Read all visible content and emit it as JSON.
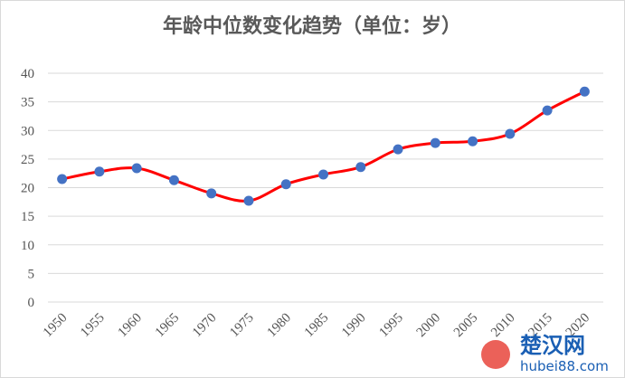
{
  "chart_data": {
    "type": "line",
    "title": "年龄中位数变化趋势（单位：岁）",
    "categories": [
      "1950",
      "1955",
      "1960",
      "1965",
      "1970",
      "1975",
      "1980",
      "1985",
      "1990",
      "1995",
      "2000",
      "2005",
      "2010",
      "2015",
      "2020"
    ],
    "series": [
      {
        "name": "年龄中位数",
        "color": "#ff0000",
        "marker_color": "#4472c4",
        "values": [
          21.5,
          22.8,
          23.4,
          21.3,
          19.0,
          17.7,
          20.6,
          22.3,
          23.6,
          26.7,
          27.8,
          28.1,
          29.4,
          33.5,
          36.8
        ]
      }
    ],
    "ylim": [
      0,
      40
    ],
    "yticks": [
      0,
      5,
      10,
      15,
      20,
      25,
      30,
      35,
      40
    ],
    "grid": true,
    "smooth": true
  },
  "watermark": {
    "name": "楚汉网",
    "url": "hubei88.com"
  }
}
